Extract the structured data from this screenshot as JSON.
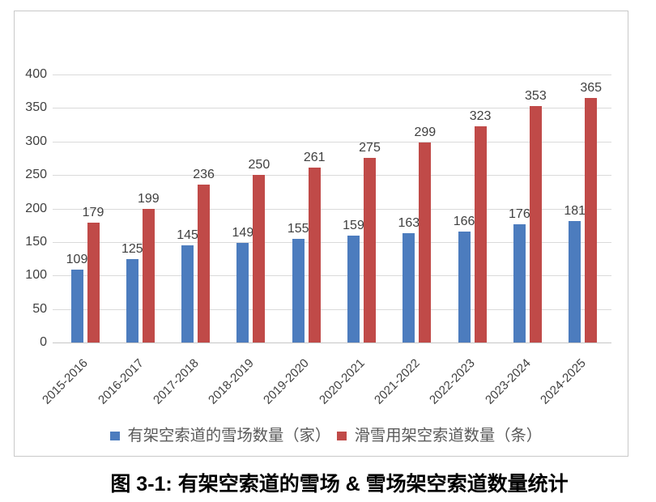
{
  "chart_data": {
    "type": "bar",
    "categories": [
      "2015-2016",
      "2016-2017",
      "2017-2018",
      "2018-2019",
      "2019-2020",
      "2020-2021",
      "2021-2022",
      "2022-2023",
      "2023-2024",
      "2024-2025"
    ],
    "series": [
      {
        "name": "有架空索道的雪场数量（家）",
        "color": "#4C7CBE",
        "values": [
          109,
          125,
          145,
          149,
          155,
          159,
          163,
          166,
          176,
          181
        ]
      },
      {
        "name": "滑雪用架空索道数量（条）",
        "color": "#C04A48",
        "values": [
          179,
          199,
          236,
          250,
          261,
          275,
          299,
          323,
          353,
          365
        ]
      }
    ],
    "title": "",
    "xlabel": "",
    "ylabel": "",
    "ylim": [
      0,
      400
    ],
    "ytick_step": 50,
    "grid": true,
    "legend_position": "bottom"
  },
  "caption": "图 3-1: 有架空索道的雪场 & 雪场架空索道数量统计"
}
